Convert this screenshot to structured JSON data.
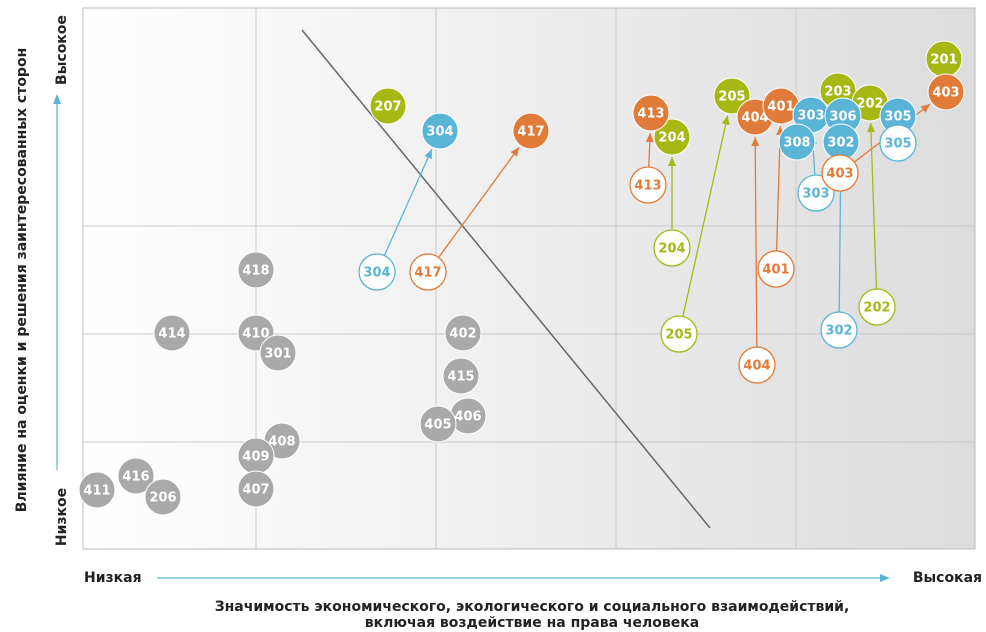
{
  "axes": {
    "y_title": "Влияние на оценки и решения заинтересованных сторон",
    "y_high": "Высокое",
    "y_low": "Низкое",
    "x_low": "Низкая",
    "x_high": "Высокая",
    "x_title": [
      "Значимость экономического, экологического и социального взаимодействий,",
      "включая воздействие на права человека"
    ]
  },
  "nodes": [
    {
      "label": "418",
      "color": "#a9a9a9",
      "style": "filled"
    },
    {
      "label": "414",
      "color": "#a9a9a9",
      "style": "filled"
    },
    {
      "label": "410",
      "color": "#a9a9a9",
      "style": "filled"
    },
    {
      "label": "301",
      "color": "#a9a9a9",
      "style": "filled"
    },
    {
      "label": "402",
      "color": "#a9a9a9",
      "style": "filled"
    },
    {
      "label": "415",
      "color": "#a9a9a9",
      "style": "filled"
    },
    {
      "label": "406",
      "color": "#a9a9a9",
      "style": "filled"
    },
    {
      "label": "405",
      "color": "#a9a9a9",
      "style": "filled"
    },
    {
      "label": "408",
      "color": "#a9a9a9",
      "style": "filled"
    },
    {
      "label": "409",
      "color": "#a9a9a9",
      "style": "filled"
    },
    {
      "label": "407",
      "color": "#a9a9a9",
      "style": "filled"
    },
    {
      "label": "411",
      "color": "#a9a9a9",
      "style": "filled"
    },
    {
      "label": "416",
      "color": "#a9a9a9",
      "style": "filled"
    },
    {
      "label": "206",
      "color": "#a9a9a9",
      "style": "filled"
    },
    {
      "label": "207",
      "color": "#a6b814",
      "style": "filled"
    },
    {
      "label": "205",
      "color": "#a6b814",
      "style": "filled"
    },
    {
      "label": "204",
      "color": "#a6b814",
      "style": "filled"
    },
    {
      "label": "203",
      "color": "#a6b814",
      "style": "filled"
    },
    {
      "label": "202",
      "color": "#a6b814",
      "style": "filled"
    },
    {
      "label": "201",
      "color": "#a6b814",
      "style": "filled"
    },
    {
      "label": "417",
      "color": "#e07b39",
      "style": "filled"
    },
    {
      "label": "413",
      "color": "#e07b39",
      "style": "filled"
    },
    {
      "label": "404",
      "color": "#e07b39",
      "style": "filled"
    },
    {
      "label": "401",
      "color": "#e07b39",
      "style": "filled"
    },
    {
      "label": "403",
      "color": "#e07b39",
      "style": "filled"
    },
    {
      "label": "304",
      "color": "#5ab4d6",
      "style": "filled"
    },
    {
      "label": "303",
      "color": "#5ab4d6",
      "style": "filled"
    },
    {
      "label": "306",
      "color": "#5ab4d6",
      "style": "filled"
    },
    {
      "label": "308",
      "color": "#5ab4d6",
      "style": "filled"
    },
    {
      "label": "302",
      "color": "#5ab4d6",
      "style": "filled"
    },
    {
      "label": "305",
      "color": "#5ab4d6",
      "style": "filled"
    },
    {
      "label": "304",
      "color": "#5ab4d6",
      "style": "outline"
    },
    {
      "label": "417",
      "color": "#e07b39",
      "style": "outline"
    },
    {
      "label": "413",
      "color": "#e07b39",
      "style": "outline"
    },
    {
      "label": "204",
      "color": "#a6b814",
      "style": "outline"
    },
    {
      "label": "205",
      "color": "#a6b814",
      "style": "outline"
    },
    {
      "label": "404",
      "color": "#e07b39",
      "style": "outline"
    },
    {
      "label": "401",
      "color": "#e07b39",
      "style": "outline"
    },
    {
      "label": "303",
      "color": "#5ab4d6",
      "style": "outline"
    },
    {
      "label": "403",
      "color": "#e07b39",
      "style": "outline"
    },
    {
      "label": "302",
      "color": "#5ab4d6",
      "style": "outline"
    },
    {
      "label": "202",
      "color": "#a6b814",
      "style": "outline"
    },
    {
      "label": "305",
      "color": "#5ab4d6",
      "style": "outline"
    }
  ]
}
